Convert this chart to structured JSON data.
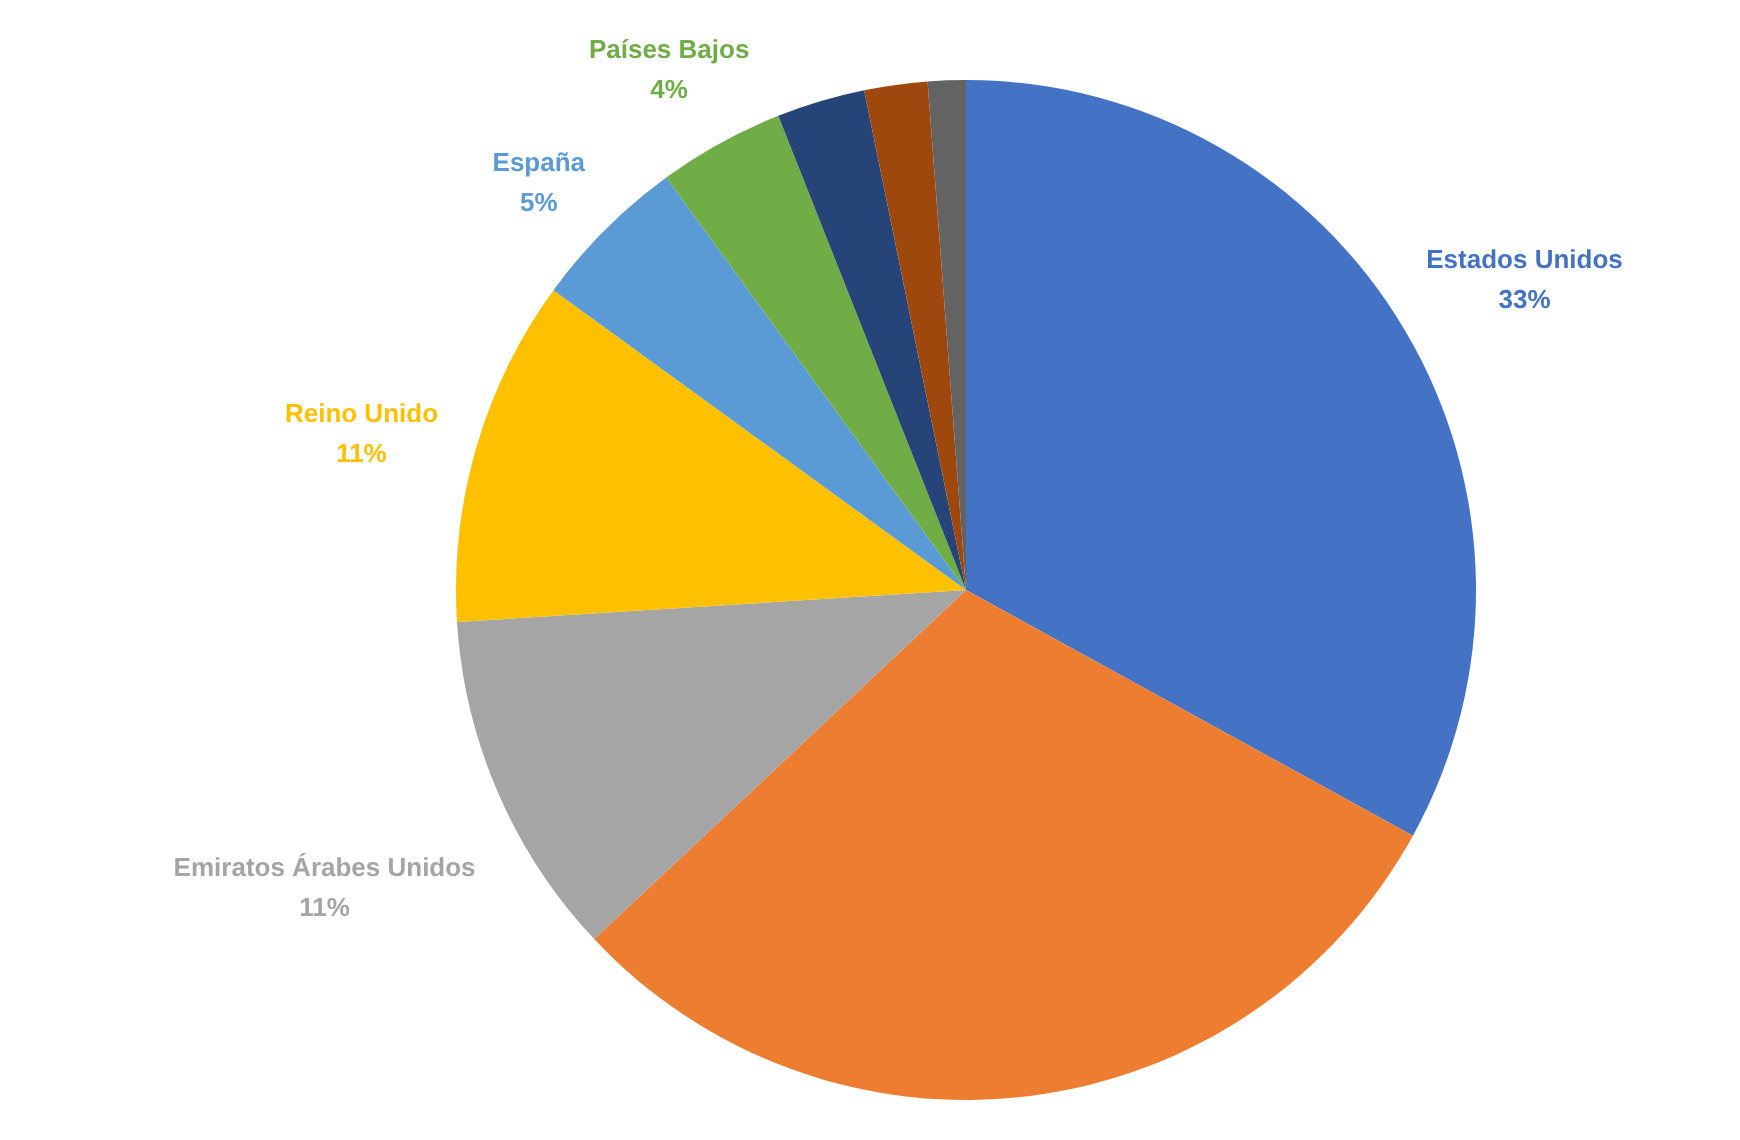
{
  "chart_data": {
    "type": "pie",
    "categories": [
      "Estados Unidos",
      null,
      "Emiratos Árabes Unidos",
      "Reino Unido",
      "España",
      "Países Bajos",
      null,
      null,
      null
    ],
    "values": [
      33,
      30,
      11,
      11,
      5,
      4,
      2.8,
      2.0,
      1.2
    ],
    "colors": [
      "#4472c4",
      "#ed7d31",
      "#a5a5a5",
      "#ffc000",
      "#5b9bd5",
      "#70ad47",
      "#264478",
      "#9e480e",
      "#636363"
    ],
    "value_labels": [
      "33%",
      null,
      "11%",
      "11%",
      "5%",
      "4%",
      null,
      null,
      null
    ]
  }
}
